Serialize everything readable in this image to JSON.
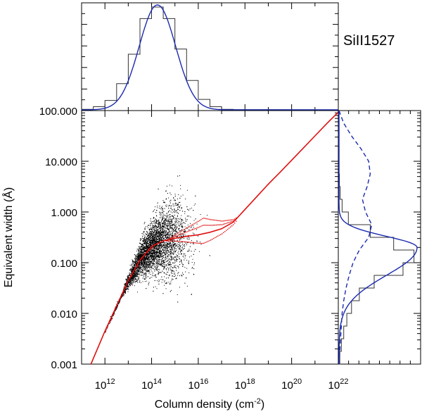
{
  "chart_data": [
    {
      "id": "main",
      "type": "scatter",
      "title": "",
      "xlabel": "Column density (cm",
      "xlabel_sup": "-2",
      "xlabel_close": ")",
      "ylabel": "Equivalent width (Å)",
      "x_scale": "log",
      "y_scale": "log",
      "xlim_log10": [
        11.0,
        22.0
      ],
      "ylim_log10": [
        -3.0,
        2.0
      ],
      "x_ticks": [
        {
          "base": "10",
          "exp": "12",
          "log10": 12
        },
        {
          "base": "10",
          "exp": "14",
          "log10": 14
        },
        {
          "base": "10",
          "exp": "16",
          "log10": 16
        },
        {
          "base": "10",
          "exp": "18",
          "log10": 18
        },
        {
          "base": "10",
          "exp": "20",
          "log10": 20
        },
        {
          "base": "10",
          "exp": "22",
          "log10": 22
        }
      ],
      "y_ticks": [
        {
          "label": "100.000",
          "log10": 2
        },
        {
          "label": "10.000",
          "log10": 1
        },
        {
          "label": "1.000",
          "log10": 0
        },
        {
          "label": "0.100",
          "log10": -1
        },
        {
          "label": "0.010",
          "log10": -2
        },
        {
          "label": "0.001",
          "log10": -3
        }
      ],
      "curve_of_growth_log10": {
        "x": [
          11.4,
          12.0,
          12.5,
          13.0,
          13.5,
          14.0,
          14.5,
          15.0,
          15.5,
          16.0,
          16.5,
          17.0,
          17.5,
          18.0,
          18.5,
          19.0,
          19.5,
          20.0,
          20.5,
          21.0,
          21.5,
          22.0
        ],
        "y": [
          -3.0,
          -2.35,
          -1.85,
          -1.35,
          -0.95,
          -0.68,
          -0.57,
          -0.52,
          -0.48,
          -0.45,
          -0.4,
          -0.33,
          -0.2,
          0.05,
          0.3,
          0.55,
          0.78,
          1.02,
          1.26,
          1.5,
          1.74,
          1.97
        ]
      },
      "curve_color": "#e01010",
      "points_color": "#000000",
      "points_count_approx": 6000,
      "points_x_range_log10": [
        12.0,
        17.0
      ]
    },
    {
      "id": "top-histogram",
      "type": "bar",
      "description": "Distribution of column density (log scale)",
      "xlim_log10": [
        11.0,
        22.0
      ],
      "bins_log10": [
        11.0,
        11.5,
        12.0,
        12.5,
        13.0,
        13.5,
        14.0,
        14.5,
        15.0,
        15.5,
        16.0,
        16.5,
        17.0,
        17.5,
        18.0
      ],
      "counts_relative": [
        0.005,
        0.03,
        0.09,
        0.25,
        0.53,
        0.87,
        0.98,
        0.87,
        0.58,
        0.28,
        0.1,
        0.03,
        0.005,
        0.002
      ],
      "fit_color": "#1a2ab0",
      "ion_label": "SiII1527"
    },
    {
      "id": "right-histogram",
      "type": "bar",
      "description": "Distribution of equivalent width (log scale)",
      "ylim_log10": [
        -3.0,
        2.0
      ],
      "bins_log10": [
        -3.0,
        -2.75,
        -2.5,
        -2.25,
        -2.0,
        -1.75,
        -1.5,
        -1.25,
        -1.0,
        -0.75,
        -0.5,
        -0.25,
        0.0,
        0.25,
        0.5,
        0.75,
        1.0
      ],
      "counts_relative": [
        0.01,
        0.03,
        0.06,
        0.1,
        0.16,
        0.26,
        0.45,
        0.82,
        0.96,
        0.7,
        0.4,
        0.12,
        0.04,
        0.015,
        0.005,
        0.0
      ],
      "fit_color": "#1a2ab0",
      "dashed_fit_log10": {
        "y": [
          2.0,
          1.75,
          1.5,
          1.25,
          1.0,
          0.75,
          0.5,
          0.25,
          0.0,
          -0.25,
          -0.5,
          -0.75,
          -1.0,
          -1.25,
          -1.5,
          -1.75,
          -2.0,
          -2.25,
          -2.5,
          -2.75,
          -3.0
        ],
        "x_relative": [
          0.0,
          0.06,
          0.16,
          0.28,
          0.38,
          0.4,
          0.36,
          0.3,
          0.34,
          0.42,
          0.38,
          0.26,
          0.18,
          0.13,
          0.09,
          0.06,
          0.04,
          0.03,
          0.02,
          0.01,
          0.0
        ]
      }
    }
  ]
}
